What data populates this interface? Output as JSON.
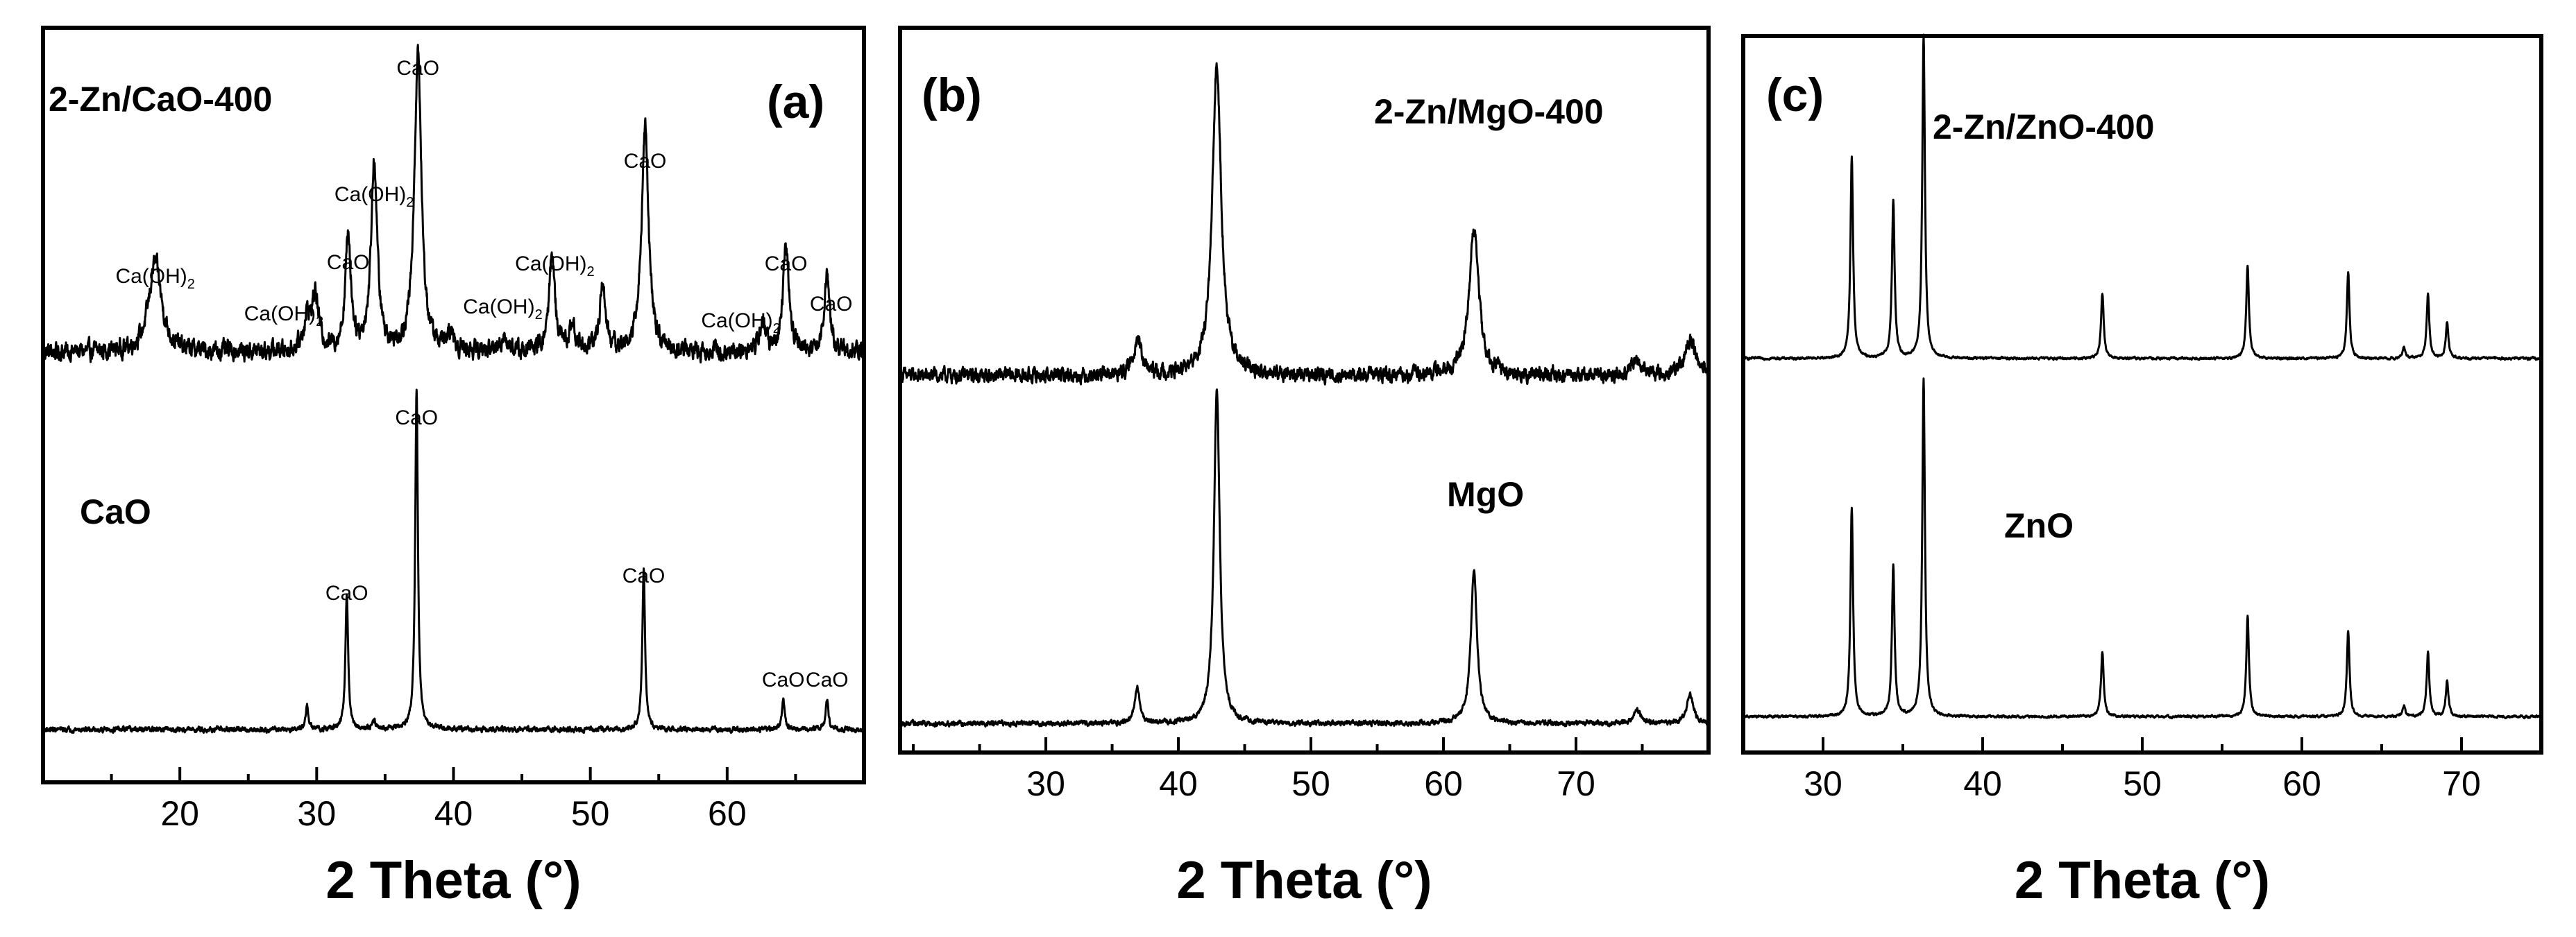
{
  "chart_data": [
    {
      "type": "line",
      "panel_label": "(a)",
      "xlabel": "2 Theta (°)",
      "ylabel": "",
      "xlim": [
        10,
        70
      ],
      "x_ticks": [
        20,
        30,
        40,
        50,
        60
      ],
      "x_tick_labels": [
        "20",
        "30",
        "40",
        "50",
        "60"
      ],
      "series": [
        {
          "name": "2-Zn/CaO-400",
          "baseline": 0.57,
          "noise": 0.022,
          "peaks": [
            {
              "x": 18.2,
              "h": 0.12,
              "w": 0.55
            },
            {
              "x": 29.3,
              "h": 0.04,
              "w": 0.3
            },
            {
              "x": 29.9,
              "h": 0.07,
              "w": 0.3
            },
            {
              "x": 32.3,
              "h": 0.15,
              "w": 0.25
            },
            {
              "x": 34.2,
              "h": 0.25,
              "w": 0.27
            },
            {
              "x": 37.4,
              "h": 0.4,
              "w": 0.3
            },
            {
              "x": 39.8,
              "h": 0.02,
              "w": 0.3
            },
            {
              "x": 43.7,
              "h": 0.02,
              "w": 0.3
            },
            {
              "x": 47.2,
              "h": 0.13,
              "w": 0.25
            },
            {
              "x": 48.7,
              "h": 0.03,
              "w": 0.3
            },
            {
              "x": 50.9,
              "h": 0.09,
              "w": 0.25
            },
            {
              "x": 54.0,
              "h": 0.3,
              "w": 0.3
            },
            {
              "x": 62.6,
              "h": 0.04,
              "w": 0.25
            },
            {
              "x": 64.3,
              "h": 0.14,
              "w": 0.25
            },
            {
              "x": 67.3,
              "h": 0.1,
              "w": 0.25
            }
          ],
          "label": "2-Zn/CaO-400",
          "annotations": [
            {
              "x": 18.2,
              "text": "Ca(OH)",
              "sub": "2"
            },
            {
              "x": 27.6,
              "text": "Ca(OH)",
              "sub": "2"
            },
            {
              "x": 32.3,
              "text": "CaO",
              "sub": ""
            },
            {
              "x": 34.2,
              "text": "Ca(OH)",
              "sub": "2"
            },
            {
              "x": 37.4,
              "text": "CaO",
              "sub": ""
            },
            {
              "x": 43.6,
              "text": "Ca(OH)",
              "sub": "2"
            },
            {
              "x": 47.4,
              "text": "Ca(OH)",
              "sub": "2"
            },
            {
              "x": 54.0,
              "text": "CaO",
              "sub": ""
            },
            {
              "x": 61.0,
              "text": "Ca(OH)",
              "sub": "2"
            },
            {
              "x": 64.3,
              "text": "CaO",
              "sub": ""
            },
            {
              "x": 67.6,
              "text": "CaO",
              "sub": ""
            }
          ]
        },
        {
          "name": "CaO",
          "baseline": 0.07,
          "noise": 0.006,
          "peaks": [
            {
              "x": 29.3,
              "h": 0.03,
              "w": 0.12
            },
            {
              "x": 32.2,
              "h": 0.18,
              "w": 0.12
            },
            {
              "x": 34.2,
              "h": 0.01,
              "w": 0.2
            },
            {
              "x": 37.3,
              "h": 0.45,
              "w": 0.12
            },
            {
              "x": 53.9,
              "h": 0.21,
              "w": 0.12
            },
            {
              "x": 64.1,
              "h": 0.04,
              "w": 0.12
            },
            {
              "x": 67.3,
              "h": 0.04,
              "w": 0.12
            }
          ],
          "label": "CaO",
          "annotations": [
            {
              "x": 32.2,
              "text": "CaO",
              "sub": ""
            },
            {
              "x": 37.3,
              "text": "CaO",
              "sub": ""
            },
            {
              "x": 53.9,
              "text": "CaO",
              "sub": ""
            },
            {
              "x": 64.1,
              "text": "CaO",
              "sub": ""
            },
            {
              "x": 67.3,
              "text": "CaO",
              "sub": ""
            }
          ]
        }
      ]
    },
    {
      "type": "line",
      "panel_label": "(b)",
      "xlabel": "2 Theta (°)",
      "ylabel": "",
      "xlim": [
        19,
        80
      ],
      "x_ticks": [
        30,
        40,
        50,
        60,
        70
      ],
      "x_tick_labels": [
        "30",
        "40",
        "50",
        "60",
        "70"
      ],
      "series": [
        {
          "name": "2-Zn/MgO-400",
          "baseline": 0.52,
          "noise": 0.018,
          "peaks": [
            {
              "x": 36.9,
              "h": 0.05,
              "w": 0.35
            },
            {
              "x": 42.9,
              "h": 0.43,
              "w": 0.4
            },
            {
              "x": 62.3,
              "h": 0.2,
              "w": 0.45
            },
            {
              "x": 74.6,
              "h": 0.02,
              "w": 0.5
            },
            {
              "x": 78.6,
              "h": 0.05,
              "w": 0.5
            }
          ],
          "label": "2-Zn/MgO-400",
          "annotations": []
        },
        {
          "name": "MgO",
          "baseline": 0.04,
          "noise": 0.006,
          "peaks": [
            {
              "x": 36.9,
              "h": 0.05,
              "w": 0.22
            },
            {
              "x": 42.9,
              "h": 0.46,
              "w": 0.26
            },
            {
              "x": 62.3,
              "h": 0.21,
              "w": 0.28
            },
            {
              "x": 74.6,
              "h": 0.02,
              "w": 0.3
            },
            {
              "x": 78.6,
              "h": 0.04,
              "w": 0.3
            }
          ],
          "label": "MgO",
          "annotations": []
        }
      ]
    },
    {
      "type": "line",
      "panel_label": "(c)",
      "xlabel": "2 Theta (°)",
      "ylabel": "",
      "xlim": [
        25,
        75
      ],
      "x_ticks": [
        30,
        40,
        50,
        60,
        70
      ],
      "x_tick_labels": [
        "30",
        "40",
        "50",
        "60",
        "70"
      ],
      "series": [
        {
          "name": "2-Zn/ZnO-400",
          "baseline": 0.55,
          "noise": 0.003,
          "peaks": [
            {
              "x": 31.8,
              "h": 0.28,
              "w": 0.1
            },
            {
              "x": 34.4,
              "h": 0.22,
              "w": 0.1
            },
            {
              "x": 36.3,
              "h": 0.45,
              "w": 0.1
            },
            {
              "x": 47.5,
              "h": 0.09,
              "w": 0.1
            },
            {
              "x": 56.6,
              "h": 0.13,
              "w": 0.1
            },
            {
              "x": 62.9,
              "h": 0.12,
              "w": 0.1
            },
            {
              "x": 66.4,
              "h": 0.015,
              "w": 0.1
            },
            {
              "x": 67.9,
              "h": 0.09,
              "w": 0.1
            },
            {
              "x": 69.1,
              "h": 0.05,
              "w": 0.1
            }
          ],
          "label": "2-Zn/ZnO-400",
          "annotations": []
        },
        {
          "name": "ZnO",
          "baseline": 0.05,
          "noise": 0.003,
          "peaks": [
            {
              "x": 31.8,
              "h": 0.29,
              "w": 0.1
            },
            {
              "x": 34.4,
              "h": 0.21,
              "w": 0.1
            },
            {
              "x": 36.3,
              "h": 0.47,
              "w": 0.1
            },
            {
              "x": 47.5,
              "h": 0.09,
              "w": 0.1
            },
            {
              "x": 56.6,
              "h": 0.14,
              "w": 0.1
            },
            {
              "x": 62.9,
              "h": 0.12,
              "w": 0.1
            },
            {
              "x": 66.4,
              "h": 0.015,
              "w": 0.1
            },
            {
              "x": 67.9,
              "h": 0.09,
              "w": 0.1
            },
            {
              "x": 69.1,
              "h": 0.05,
              "w": 0.1
            }
          ],
          "label": "ZnO",
          "annotations": []
        }
      ]
    }
  ]
}
